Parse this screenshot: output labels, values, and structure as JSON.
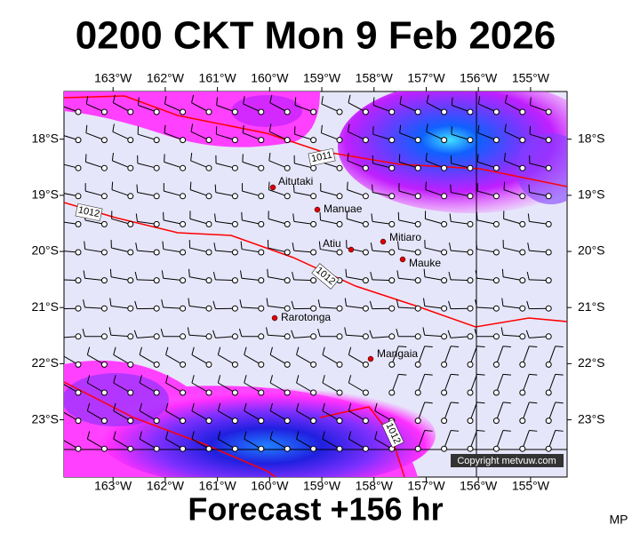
{
  "header": {
    "title": "0200 CKT Mon 9 Feb 2026"
  },
  "map": {
    "lon_range": [
      -163.94,
      -154.3
    ],
    "lat_range": [
      -17.15,
      -24.02
    ],
    "lon_ticks": [
      {
        "value": -163,
        "label": "163°W"
      },
      {
        "value": -162,
        "label": "162°W"
      },
      {
        "value": -161,
        "label": "161°W"
      },
      {
        "value": -160,
        "label": "160°W"
      },
      {
        "value": -159,
        "label": "159°W"
      },
      {
        "value": -158,
        "label": "158°W"
      },
      {
        "value": -157,
        "label": "157°W"
      },
      {
        "value": -156,
        "label": "156°W"
      },
      {
        "value": -155,
        "label": "155°W"
      }
    ],
    "lat_ticks": [
      {
        "value": -18,
        "label": "18°S"
      },
      {
        "value": -19,
        "label": "19°S"
      },
      {
        "value": -20,
        "label": "20°S"
      },
      {
        "value": -21,
        "label": "21°S"
      },
      {
        "value": -22,
        "label": "22°S"
      },
      {
        "value": -23,
        "label": "23°S"
      }
    ],
    "places": [
      "Aitutaki",
      "Manuae",
      "Mitiaro",
      "Atiu",
      "Mauke",
      "Rarotonga",
      "Mangaia"
    ],
    "isobar_labels": [
      "1011",
      "1012",
      "1012",
      "1012"
    ],
    "copyright": "Copyright metvuw.com"
  },
  "footer": {
    "forecast": "Forecast +156 hr",
    "initials": "MP"
  }
}
